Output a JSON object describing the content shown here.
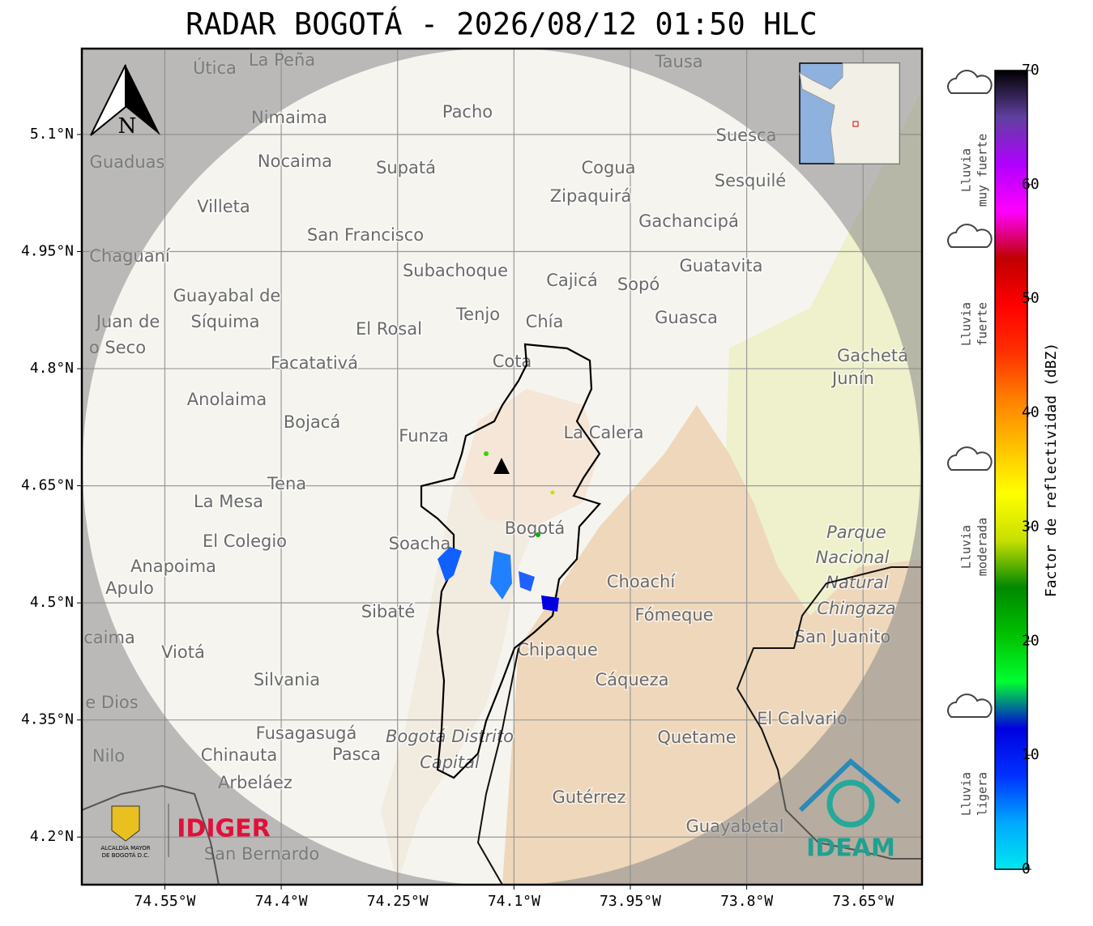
{
  "title": "RADAR BOGOTÁ - 2026/08/12 01:50 HLC",
  "map": {
    "xlim": [
      -74.657,
      -73.574
    ],
    "ylim": [
      4.139,
      5.21
    ],
    "xticks": [
      {
        "value": -74.55,
        "label": "74.55°W"
      },
      {
        "value": -74.4,
        "label": "74.4°W"
      },
      {
        "value": -74.25,
        "label": "74.25°W"
      },
      {
        "value": -74.1,
        "label": "74.1°W"
      },
      {
        "value": -73.95,
        "label": "73.95°W"
      },
      {
        "value": -73.8,
        "label": "73.8°W"
      },
      {
        "value": -73.65,
        "label": "73.65°W"
      }
    ],
    "yticks": [
      {
        "value": 5.1,
        "label": "5.1°N"
      },
      {
        "value": 4.95,
        "label": "4.95°N"
      },
      {
        "value": 4.8,
        "label": "4.8°N"
      },
      {
        "value": 4.65,
        "label": "4.65°N"
      },
      {
        "value": 4.5,
        "label": "4.5°N"
      },
      {
        "value": 4.35,
        "label": "4.35°N"
      },
      {
        "value": 4.2,
        "label": "4.2°N"
      }
    ],
    "grid": true,
    "north": "N",
    "places": [
      "La Peña",
      "Útica",
      "Tausa",
      "Pacho",
      "Nimaima",
      "Guaduas",
      "Nocaima",
      "Supatá",
      "Cogua",
      "Suesca",
      "Sesquilé",
      "Zipaquirá",
      "Villeta",
      "Gachancipá",
      "San Francisco",
      "Chaguaní",
      "Guatavita",
      "Subachoque",
      "Cajicá",
      "Sopó",
      "Guayabal de",
      "Síquima",
      "Juan de",
      "o Seco",
      "Tenjo",
      "Guasca",
      "Chía",
      "El Rosal",
      "Gachetá",
      "Junín",
      "Facatativá",
      "Cota",
      "Anolaima",
      "Bojacá",
      "La Calera",
      "Funza",
      "Tena",
      "La Mesa",
      "Bogotá",
      "Parque",
      "Nacional",
      "Natural",
      "Chingaza",
      "El Colegio",
      "Soacha",
      "Anapoima",
      "Apulo",
      "Choachí",
      "Fómeque",
      "Sibaté",
      "San Juanito",
      "caima",
      "Viotá",
      "Chipaque",
      "Silvania",
      "Cáqueza",
      "e Dios",
      "El Calvario",
      "Fusagasugá",
      "Quetame",
      "Bogotá Distrito",
      "Capital",
      "Chinauta",
      "Pasca",
      "Nilo",
      "Arbeláez",
      "Gutérrez",
      "Guayabetal",
      "San Bernardo"
    ]
  },
  "colorbar": {
    "label": "Factor de reflectividad (dBZ)",
    "lim": [
      0,
      70
    ],
    "ticks": [
      0,
      10,
      20,
      30,
      40,
      50,
      60,
      70
    ],
    "colors": [
      "#00e8f0",
      "#00a8ff",
      "#0030ff",
      "#0000e0",
      "#00ff30",
      "#00c000",
      "#008800",
      "#c8e000",
      "#ffff00",
      "#ffc000",
      "#ff8000",
      "#ff3000",
      "#ff0000",
      "#c00000",
      "#ff00ff",
      "#b000ff",
      "#6040a0",
      "#000000"
    ]
  },
  "legend": [
    {
      "lines": [
        "Lluvia",
        "muy fuerte"
      ]
    },
    {
      "lines": [
        "Lluvia",
        "fuerte"
      ]
    },
    {
      "lines": [
        "Lluvia",
        "moderada"
      ]
    },
    {
      "lines": [
        "Lluvia",
        "ligera"
      ]
    }
  ],
  "logos": {
    "left": "IDIGER",
    "alcaldia": [
      "ALCALDÍA MAYOR",
      "DE BOGOTÁ D.C."
    ],
    "right": "IDEAM"
  }
}
